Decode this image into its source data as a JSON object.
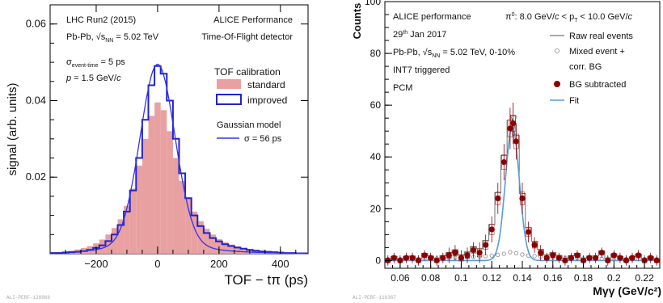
{
  "chart_data": [
    {
      "type": "bar",
      "xlabel": "TOF − tπ (ps)",
      "ylabel": "signal (arb. units)",
      "xlim": [
        -350,
        490
      ],
      "ylim": [
        0,
        0.065
      ],
      "xticks": [
        -200,
        0,
        200,
        400
      ],
      "xtick_labels": [
        "−200",
        "0",
        "200",
        "400"
      ],
      "yticks": [
        0.02,
        0.04,
        0.06
      ],
      "ytick_labels": [
        "0.02",
        "0.04",
        "0.06"
      ],
      "annotations_left": [
        "LHC Run2 (2015)",
        "Pb-Pb, √s",
        "NN",
        " = 5.02 TeV"
      ],
      "annotations_sigma": [
        "σ",
        "event-time",
        " = 5 ps"
      ],
      "annotations_p": [
        "p",
        " = 1.5 GeV/",
        "c"
      ],
      "annotations_right": [
        "ALICE Performance",
        "Time-Of-Flight detector"
      ],
      "legend": {
        "header": "TOF calibration",
        "entries": [
          "standard",
          "improved"
        ],
        "model_header": "Gaussian model",
        "model_entry": "σ = 56 ps"
      },
      "series": [
        {
          "name": "standard",
          "color": "#e8a0a0",
          "x": [
            -340,
            -320,
            -300,
            -280,
            -260,
            -240,
            -220,
            -200,
            -180,
            -160,
            -140,
            -120,
            -100,
            -80,
            -60,
            -40,
            -20,
            0,
            20,
            40,
            60,
            80,
            100,
            120,
            140,
            160,
            180,
            200,
            220,
            240,
            260,
            280,
            300,
            320,
            340,
            360,
            380,
            400,
            420,
            440,
            460,
            480
          ],
          "values": [
            0.0003,
            0.0004,
            0.0006,
            0.0008,
            0.0011,
            0.0015,
            0.002,
            0.0027,
            0.0037,
            0.005,
            0.0067,
            0.009,
            0.0125,
            0.017,
            0.023,
            0.03,
            0.036,
            0.0395,
            0.0375,
            0.032,
            0.025,
            0.019,
            0.0145,
            0.011,
            0.0085,
            0.0065,
            0.005,
            0.0038,
            0.003,
            0.0024,
            0.0019,
            0.0015,
            0.0012,
            0.001,
            0.0008,
            0.0006,
            0.0005,
            0.0004,
            0.0003,
            0.0003,
            0.0002,
            0.0002
          ]
        },
        {
          "name": "improved",
          "color": "#2222cc",
          "x": [
            -340,
            -320,
            -300,
            -280,
            -260,
            -240,
            -220,
            -200,
            -180,
            -160,
            -140,
            -120,
            -100,
            -80,
            -60,
            -40,
            -20,
            0,
            20,
            40,
            60,
            80,
            100,
            120,
            140,
            160,
            180,
            200,
            220,
            240,
            260,
            280,
            300,
            320,
            340,
            360,
            380,
            400,
            420,
            440,
            460,
            480
          ],
          "values": [
            0.0002,
            0.0002,
            0.0003,
            0.0004,
            0.0005,
            0.0007,
            0.001,
            0.0015,
            0.0022,
            0.0033,
            0.005,
            0.0075,
            0.011,
            0.0165,
            0.025,
            0.035,
            0.044,
            0.049,
            0.047,
            0.04,
            0.03,
            0.021,
            0.0145,
            0.01,
            0.0072,
            0.0054,
            0.0041,
            0.0032,
            0.0025,
            0.002,
            0.0016,
            0.0013,
            0.001,
            0.0008,
            0.0006,
            0.0005,
            0.0004,
            0.0003,
            0.0002,
            0.0002,
            0.0001,
            0.0001
          ]
        },
        {
          "name": "σ = 56 ps",
          "type": "line",
          "color": "#3333ee",
          "mean": 0,
          "sigma": 56,
          "amplitude": 0.047
        }
      ],
      "footer": "ALI-PERF-128066"
    },
    {
      "type": "scatter",
      "xlabel": "Mγγ (GeV/c²)",
      "ylabel": "Counts",
      "xlim": [
        0.05,
        0.23
      ],
      "ylim": [
        -3,
        100
      ],
      "xticks": [
        0.06,
        0.08,
        0.1,
        0.12,
        0.14,
        0.16,
        0.18,
        0.2,
        0.22
      ],
      "xtick_labels": [
        "0.06",
        "0.08",
        "0.1",
        "0.12",
        "0.14",
        "0.16",
        "0.18",
        "0.2",
        "0.22"
      ],
      "yticks": [
        0,
        20,
        40,
        60,
        80,
        100
      ],
      "ytick_labels": [
        "0",
        "20",
        "40",
        "60",
        "80",
        "100"
      ],
      "annotations_left": [
        "ALICE performance",
        "29",
        "th",
        " Jan 2017",
        "Pb-Pb, √s",
        "NN",
        " = 5.02 TeV, 0-10%",
        "INT7 triggered",
        "PCM"
      ],
      "annotation_pt": [
        "π",
        "0",
        ": 8.0 GeV/",
        "c",
        " < p",
        "T",
        " < 10.0 GeV/",
        "c"
      ],
      "legend": [
        "Raw real events",
        "Mixed event +",
        "corr. BG",
        "BG subtracted",
        "Fit"
      ],
      "series": [
        {
          "name": "BG subtracted",
          "color": "#8b0000",
          "x": [
            0.052,
            0.056,
            0.06,
            0.064,
            0.068,
            0.072,
            0.076,
            0.08,
            0.084,
            0.088,
            0.092,
            0.096,
            0.1,
            0.104,
            0.108,
            0.112,
            0.116,
            0.12,
            0.124,
            0.128,
            0.132,
            0.134,
            0.136,
            0.14,
            0.144,
            0.148,
            0.152,
            0.156,
            0.16,
            0.164,
            0.168,
            0.172,
            0.176,
            0.18,
            0.184,
            0.188,
            0.192,
            0.196,
            0.2,
            0.204,
            0.208,
            0.212,
            0.216,
            0.22,
            0.224,
            0.228
          ],
          "values": [
            0,
            1,
            0,
            1,
            1,
            0,
            2,
            1,
            0,
            1,
            2,
            3,
            1,
            2,
            4,
            3,
            6,
            12,
            24,
            38,
            51,
            53,
            46,
            24,
            11,
            6,
            3,
            1,
            2,
            1,
            0,
            1,
            2,
            0,
            1,
            1,
            3,
            0,
            2,
            1,
            0,
            1,
            2,
            0,
            1,
            0
          ],
          "errors": [
            2,
            2,
            2,
            2,
            2,
            2,
            2,
            2,
            2,
            2,
            3,
            3,
            3,
            3,
            3,
            4,
            4,
            5,
            6,
            7,
            8,
            8,
            7,
            6,
            4,
            3,
            3,
            2,
            2,
            2,
            2,
            2,
            2,
            2,
            2,
            2,
            2,
            2,
            2,
            2,
            2,
            2,
            2,
            2,
            2,
            2
          ]
        },
        {
          "name": "Mixed event + corr. BG",
          "color": "#888888",
          "x": [
            0.052,
            0.056,
            0.06,
            0.064,
            0.068,
            0.072,
            0.076,
            0.08,
            0.084,
            0.088,
            0.092,
            0.096,
            0.1,
            0.104,
            0.108,
            0.112,
            0.116,
            0.12,
            0.124,
            0.128,
            0.132,
            0.136,
            0.14,
            0.144,
            0.148,
            0.152,
            0.156,
            0.16,
            0.164,
            0.168,
            0.172,
            0.176,
            0.18,
            0.184,
            0.188,
            0.192,
            0.196,
            0.2,
            0.204,
            0.208,
            0.212,
            0.216,
            0.22,
            0.224,
            0.228
          ],
          "values": [
            0.5,
            0.6,
            0.5,
            0.6,
            0.7,
            0.6,
            0.8,
            0.7,
            0.8,
            0.9,
            1.0,
            1.1,
            1.2,
            1.3,
            1.4,
            1.5,
            1.7,
            1.9,
            2.2,
            2.6,
            3.2,
            2.8,
            2.3,
            1.9,
            1.7,
            1.5,
            1.3,
            1.2,
            1.1,
            1.0,
            0.9,
            0.9,
            0.8,
            0.8,
            0.7,
            0.7,
            0.7,
            0.6,
            0.6,
            0.6,
            0.5,
            0.5,
            0.5,
            0.5,
            0.5
          ]
        },
        {
          "name": "Fit",
          "type": "line",
          "color": "#5b9bd5",
          "mean": 0.1335,
          "sigma": 0.0045,
          "amplitude": 52
        }
      ],
      "footer": "ALI-PERF-116367"
    }
  ]
}
